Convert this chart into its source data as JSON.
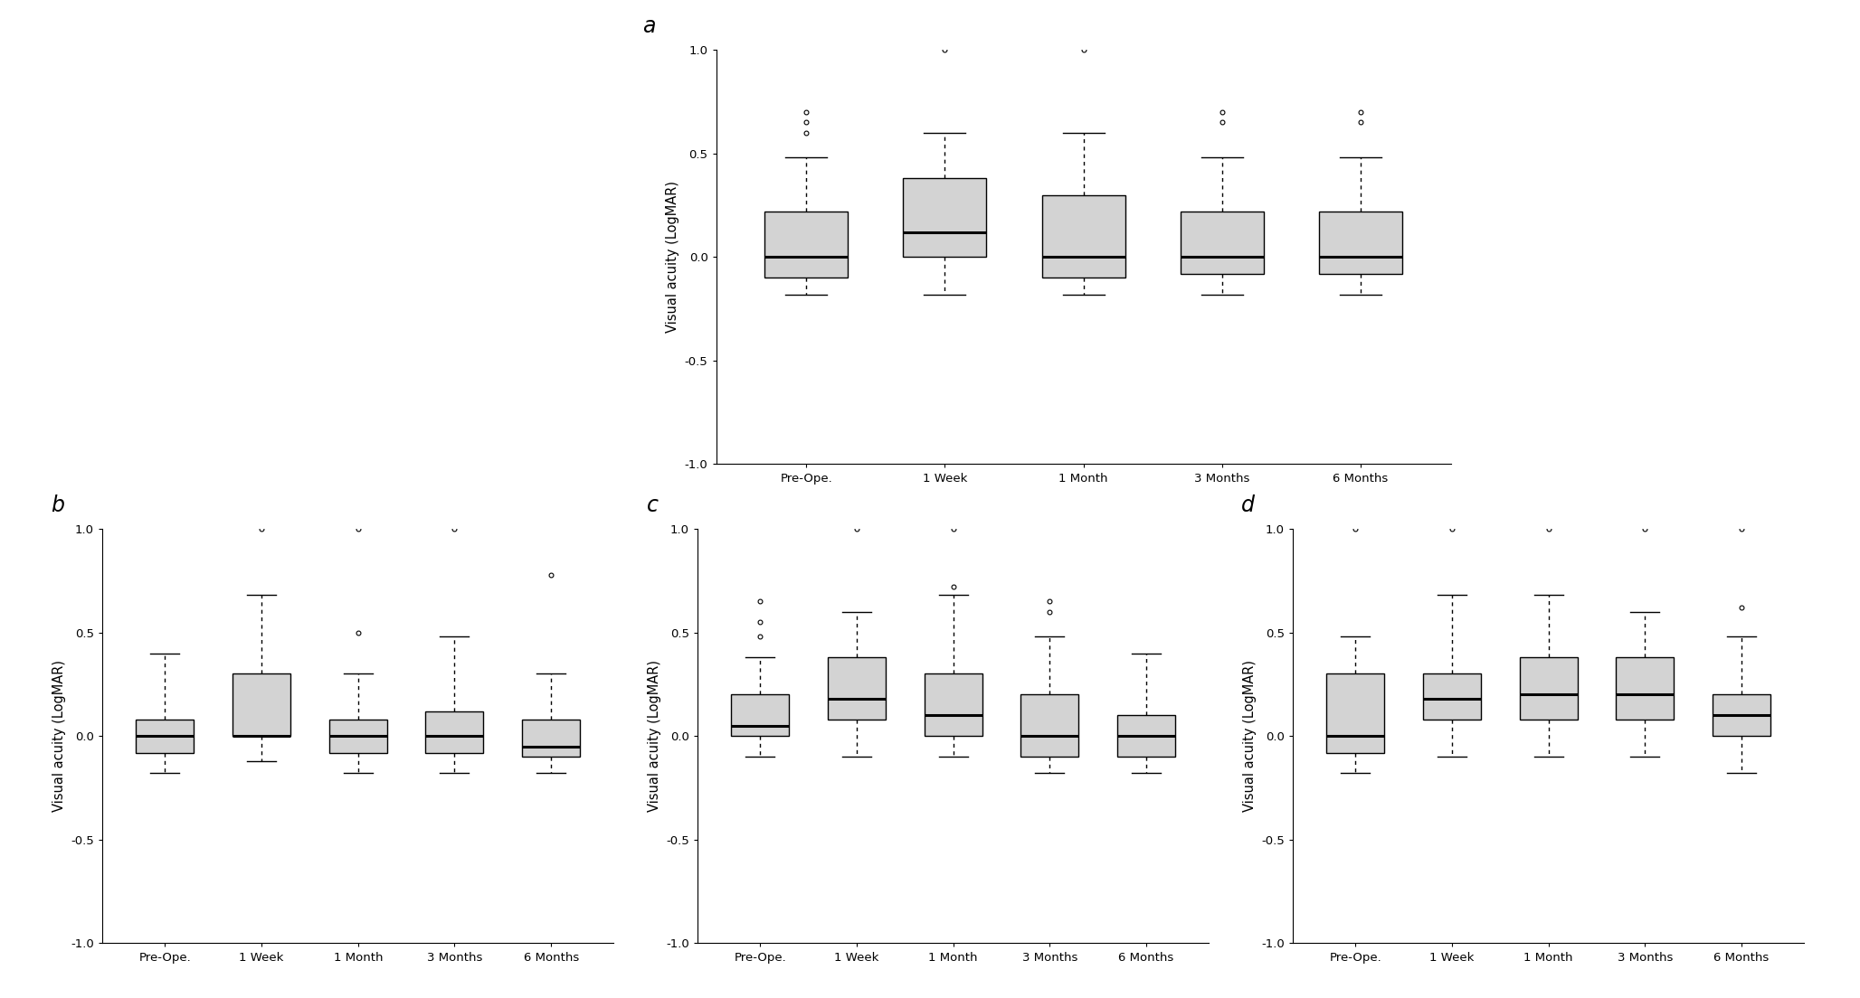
{
  "panels": [
    "a",
    "b",
    "c",
    "d"
  ],
  "categories": [
    "Pre-Ope.",
    "1 Week",
    "1 Month",
    "3 Months",
    "6 Months"
  ],
  "ylabel": "Visual acuity (LogMAR)",
  "ylim": [
    -1.0,
    1.0
  ],
  "yticks": [
    -1.0,
    -0.5,
    0.0,
    0.5,
    1.0
  ],
  "ytick_labels": [
    "-1.0",
    "-0.5",
    "0.0",
    "0.5",
    "1.0"
  ],
  "box_color": "#d3d3d3",
  "box_edgecolor": "#000000",
  "median_color": "#000000",
  "whisker_color": "#000000",
  "flier_color": "#000000",
  "background_color": "#ffffff",
  "panels_data": {
    "a": {
      "medians": [
        0.0,
        0.12,
        0.0,
        0.0,
        0.0
      ],
      "q1": [
        -0.1,
        0.0,
        -0.1,
        -0.08,
        -0.08
      ],
      "q3": [
        0.22,
        0.38,
        0.3,
        0.22,
        0.22
      ],
      "whisker_lo": [
        -0.18,
        -0.18,
        -0.18,
        -0.18,
        -0.18
      ],
      "whisker_hi": [
        0.48,
        0.6,
        0.6,
        0.48,
        0.48
      ],
      "fliers_hi": [
        [
          0.7,
          0.65,
          0.6
        ],
        [
          1.0
        ],
        [
          1.0
        ],
        [
          0.7,
          0.65
        ],
        [
          0.7,
          0.65
        ]
      ],
      "fliers_lo": [
        [],
        [],
        [],
        [],
        []
      ]
    },
    "b": {
      "medians": [
        0.0,
        0.0,
        0.0,
        0.0,
        -0.05
      ],
      "q1": [
        -0.08,
        0.0,
        -0.08,
        -0.08,
        -0.1
      ],
      "q3": [
        0.08,
        0.3,
        0.08,
        0.12,
        0.08
      ],
      "whisker_lo": [
        -0.18,
        -0.12,
        -0.18,
        -0.18,
        -0.18
      ],
      "whisker_hi": [
        0.4,
        0.68,
        0.3,
        0.48,
        0.3
      ],
      "fliers_hi": [
        [],
        [
          1.0
        ],
        [
          1.0,
          0.5
        ],
        [
          1.0
        ],
        [
          0.78
        ]
      ],
      "fliers_lo": [
        [],
        [],
        [],
        [],
        []
      ]
    },
    "c": {
      "medians": [
        0.05,
        0.18,
        0.1,
        0.0,
        0.0
      ],
      "q1": [
        0.0,
        0.08,
        0.0,
        -0.1,
        -0.1
      ],
      "q3": [
        0.2,
        0.38,
        0.3,
        0.2,
        0.1
      ],
      "whisker_lo": [
        -0.1,
        -0.1,
        -0.1,
        -0.18,
        -0.18
      ],
      "whisker_hi": [
        0.38,
        0.6,
        0.68,
        0.48,
        0.4
      ],
      "fliers_hi": [
        [
          0.65,
          0.55,
          0.48
        ],
        [
          1.0
        ],
        [
          1.0,
          0.72
        ],
        [
          0.65,
          0.6
        ],
        []
      ],
      "fliers_lo": [
        [],
        [],
        [],
        [],
        []
      ]
    },
    "d": {
      "medians": [
        0.0,
        0.18,
        0.2,
        0.2,
        0.1
      ],
      "q1": [
        -0.08,
        0.08,
        0.08,
        0.08,
        0.0
      ],
      "q3": [
        0.3,
        0.3,
        0.38,
        0.38,
        0.2
      ],
      "whisker_lo": [
        -0.18,
        -0.1,
        -0.1,
        -0.1,
        -0.18
      ],
      "whisker_hi": [
        0.48,
        0.68,
        0.68,
        0.6,
        0.48
      ],
      "fliers_hi": [
        [
          1.0
        ],
        [
          1.0
        ],
        [
          1.0
        ],
        [
          1.0
        ],
        [
          0.62,
          1.0
        ]
      ],
      "fliers_lo": [
        [],
        [],
        [],
        [],
        []
      ]
    }
  }
}
